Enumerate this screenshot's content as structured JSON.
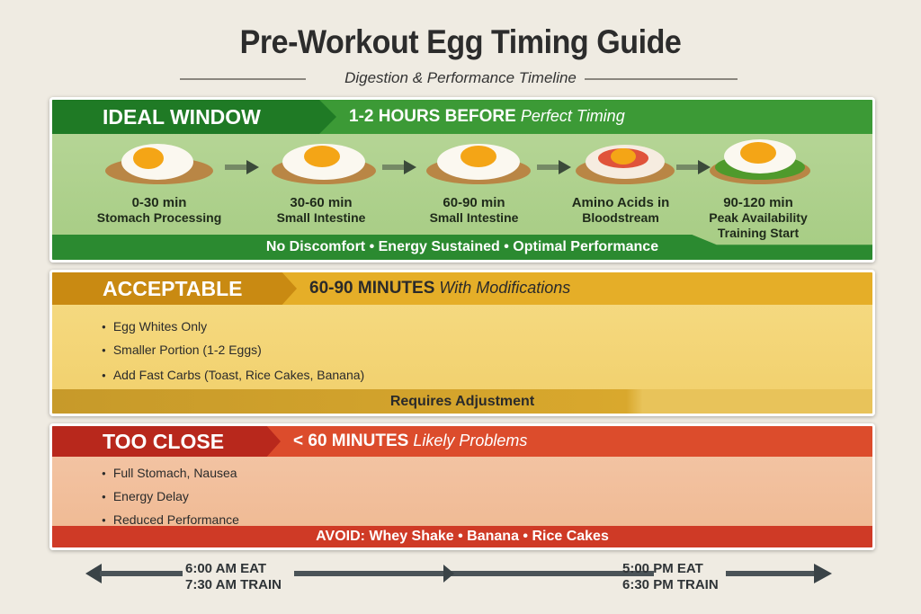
{
  "title": "Pre-Workout Egg Timing Guide",
  "subtitle": "Digestion & Performance Timeline",
  "colors": {
    "green": "#2f8a2f",
    "yellow": "#e2a824",
    "red": "#d9452a",
    "background": "#efebe2"
  },
  "ideal": {
    "label": "IDEAL WINDOW",
    "time": "1-2 HOURS BEFORE",
    "note": "Perfect Timing",
    "steps": [
      {
        "time": "0-30 min",
        "desc": "Stomach Processing"
      },
      {
        "time": "30-60 min",
        "desc": "Small Intestine"
      },
      {
        "time": "60-90 min",
        "desc": "Small Intestine"
      },
      {
        "time": "Amino Acids in",
        "desc": "Bloodstream"
      },
      {
        "time": "90-120 min",
        "desc": "Peak Availability",
        "extra": "Training Start"
      }
    ],
    "footer": "No Discomfort • Energy Sustained • Optimal Performance"
  },
  "acceptable": {
    "label": "ACCEPTABLE",
    "time": "60-90 MINUTES",
    "note": "With Modifications",
    "bullets": [
      "Egg Whites Only",
      "Smaller Portion (1-2 Eggs)",
      "Add Fast Carbs (Toast, Rice Cakes, Banana)"
    ],
    "footer": "Requires Adjustment"
  },
  "too_close": {
    "label": "TOO CLOSE",
    "time": "< 60 MINUTES",
    "note": "Likely Problems",
    "bullets": [
      "Full Stomach, Nausea",
      "Energy Delay",
      "Reduced Performance"
    ],
    "footer": "AVOID: Whey Shake • Banana • Rice Cakes"
  },
  "timeline": {
    "morning_eat": "6:00 AM EAT",
    "morning_train": "7:30 AM TRAIN",
    "evening_eat": "5:00 PM EAT",
    "evening_train": "6:30 PM TRAIN"
  }
}
